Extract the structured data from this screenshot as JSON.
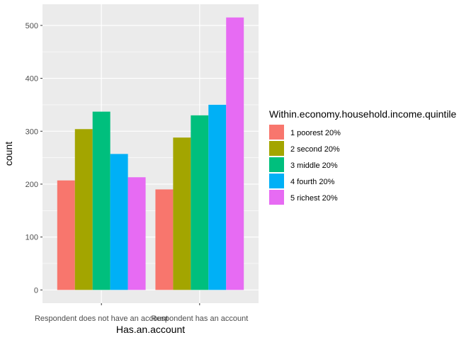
{
  "chart_data": {
    "type": "bar",
    "xlabel": "Has.an.account",
    "ylabel": "count",
    "categories": [
      "Respondent does not have an account",
      "Respondent has an account"
    ],
    "ylim": [
      -25,
      540
    ],
    "yticks": [
      0,
      100,
      200,
      300,
      400,
      500
    ],
    "grid": true,
    "legend_title": "Within.economy.household.income.quintile",
    "legend_position": "right",
    "series": [
      {
        "name": "1 poorest 20%",
        "color": "#F8766D",
        "values": [
          207,
          190
        ]
      },
      {
        "name": "2 second 20%",
        "color": "#A3A500",
        "values": [
          304,
          288
        ]
      },
      {
        "name": "3 middle 20%",
        "color": "#00BF7D",
        "values": [
          337,
          330
        ]
      },
      {
        "name": "4 fourth 20%",
        "color": "#00B0F6",
        "values": [
          257,
          350
        ]
      },
      {
        "name": "5 richest 20%",
        "color": "#E76BF3",
        "values": [
          213,
          515
        ]
      }
    ]
  }
}
